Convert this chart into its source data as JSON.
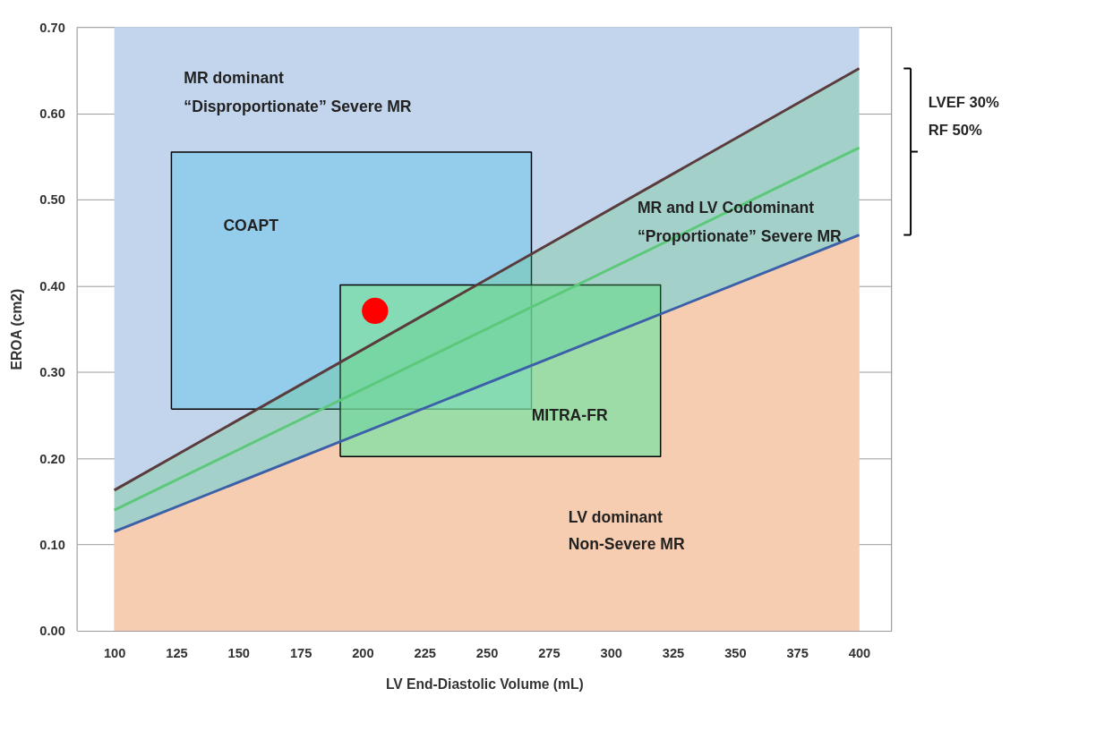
{
  "chart_data": {
    "type": "line",
    "xlabel": "LV End-Diastolic Volume (mL)",
    "ylabel": "EROA (cm2)",
    "x": [
      100,
      400
    ],
    "xlim": [
      85,
      413
    ],
    "ylim": [
      0,
      0.7
    ],
    "xticks": [
      100,
      125,
      150,
      175,
      200,
      225,
      250,
      275,
      300,
      325,
      350,
      375,
      400
    ],
    "yticks": [
      {
        "value": 0,
        "label": "0.00"
      },
      {
        "value": 0.1,
        "label": "0.10"
      },
      {
        "value": 0.2,
        "label": "0.20"
      },
      {
        "value": 0.3,
        "label": "0.30"
      },
      {
        "value": 0.4,
        "label": "0.40"
      },
      {
        "value": 0.5,
        "label": "0.50"
      },
      {
        "value": 0.6,
        "label": "0.60"
      },
      {
        "value": 0.7,
        "label": "0.70"
      }
    ],
    "grid": "y",
    "series": [
      {
        "type": "area",
        "color": "#c3d5ec",
        "values": [
          0.7,
          0.7
        ]
      },
      {
        "type": "area",
        "color": "#f6cdb0",
        "values": [
          0.115,
          0.459
        ]
      },
      {
        "type": "area",
        "color": "#84c8ec",
        "x": [
          123,
          123,
          268,
          268,
          123
        ],
        "values": [
          0.257,
          0.555,
          0.555,
          0.257,
          0.257
        ]
      },
      {
        "type": "area",
        "color": "#7fe0a4",
        "x": [
          191,
          191,
          320,
          320,
          191
        ],
        "values": [
          0.202,
          0.401,
          0.401,
          0.202,
          0.202
        ]
      },
      {
        "color": "#5cc87a",
        "values": [
          0.14,
          0.56
        ],
        "lower": [
          0.115,
          0.459
        ],
        "upper": [
          0.163,
          0.652
        ]
      },
      {
        "color": "#5a3b3b",
        "values": [
          0.163,
          0.652
        ]
      },
      {
        "color": "#3b5fa8",
        "values": [
          0.115,
          0.459
        ]
      },
      {
        "type": "scatter",
        "color": "#ff0000",
        "x": [
          205
        ],
        "values": [
          0.371
        ]
      }
    ],
    "annotations": [
      "MR dominant",
      "“Disproportionate” Severe MR",
      "COAPT",
      "MITRA-FR",
      "MR and LV Codominant",
      "“Proportionate” Severe MR",
      "LV dominant",
      "Non-Severe MR",
      "LVEF 30%",
      "RF 50%"
    ]
  }
}
